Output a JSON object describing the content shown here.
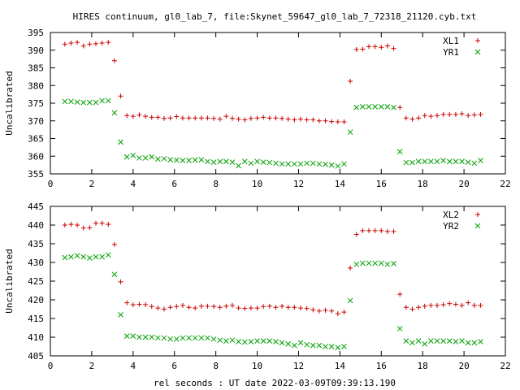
{
  "figure": {
    "title": "HIRES continuum, gl0_lab_7, file:Skynet_59647_gl0_lab_7_72318_21120.cyb.txt",
    "xlabel": "rel seconds : UT date 2022-03-09T09:39:13.190"
  },
  "chart_data": [
    {
      "type": "scatter",
      "ylabel": "Uncalibrated",
      "xlim": [
        0,
        22
      ],
      "ylim": [
        355,
        395
      ],
      "xticks": [
        0,
        2,
        4,
        6,
        8,
        10,
        12,
        14,
        16,
        18,
        20,
        22
      ],
      "yticks": [
        355,
        360,
        365,
        370,
        375,
        380,
        385,
        390,
        395
      ],
      "grid": false,
      "legend": "top-right",
      "series": [
        {
          "name": "XL1",
          "marker": "plus",
          "color": "#cc0000",
          "x": [
            0.7,
            1.0,
            1.3,
            1.6,
            1.9,
            2.2,
            2.5,
            2.8,
            3.1,
            3.4,
            3.7,
            4.0,
            4.3,
            4.6,
            4.9,
            5.2,
            5.5,
            5.8,
            6.1,
            6.4,
            6.7,
            7.0,
            7.3,
            7.6,
            7.9,
            8.2,
            8.5,
            8.8,
            9.1,
            9.4,
            9.7,
            10.0,
            10.3,
            10.6,
            10.9,
            11.2,
            11.5,
            11.8,
            12.1,
            12.4,
            12.7,
            13.0,
            13.3,
            13.6,
            13.9,
            14.2,
            14.5,
            14.8,
            15.1,
            15.4,
            15.7,
            16.0,
            16.3,
            16.6,
            16.9,
            17.2,
            17.5,
            17.8,
            18.1,
            18.4,
            18.7,
            19.0,
            19.3,
            19.6,
            19.9,
            20.2,
            20.5,
            20.8
          ],
          "y": [
            391.7,
            392.0,
            392.2,
            391.2,
            391.7,
            391.8,
            392.0,
            392.2,
            387.0,
            377.0,
            371.5,
            371.3,
            371.7,
            371.3,
            371.0,
            371.0,
            370.7,
            370.8,
            371.2,
            370.8,
            370.8,
            370.8,
            370.8,
            370.8,
            370.7,
            370.5,
            371.3,
            370.7,
            370.5,
            370.3,
            370.7,
            370.8,
            371.0,
            370.8,
            370.8,
            370.7,
            370.5,
            370.3,
            370.5,
            370.3,
            370.3,
            370.0,
            370.0,
            369.8,
            369.7,
            369.7,
            381.2,
            390.2,
            390.3,
            391.0,
            391.0,
            390.8,
            391.2,
            390.5,
            373.8,
            370.8,
            370.5,
            370.8,
            371.5,
            371.3,
            371.5,
            371.8,
            371.8,
            371.8,
            372.0,
            371.5,
            371.7,
            371.8
          ]
        },
        {
          "name": "YR1",
          "marker": "cross",
          "color": "#00a000",
          "x": [
            0.7,
            1.0,
            1.3,
            1.6,
            1.9,
            2.2,
            2.5,
            2.8,
            3.1,
            3.4,
            3.7,
            4.0,
            4.3,
            4.6,
            4.9,
            5.2,
            5.5,
            5.8,
            6.1,
            6.4,
            6.7,
            7.0,
            7.3,
            7.6,
            7.9,
            8.2,
            8.5,
            8.8,
            9.1,
            9.4,
            9.7,
            10.0,
            10.3,
            10.6,
            10.9,
            11.2,
            11.5,
            11.8,
            12.1,
            12.4,
            12.7,
            13.0,
            13.3,
            13.6,
            13.9,
            14.2,
            14.5,
            14.8,
            15.1,
            15.4,
            15.7,
            16.0,
            16.3,
            16.6,
            16.9,
            17.2,
            17.5,
            17.8,
            18.1,
            18.4,
            18.7,
            19.0,
            19.3,
            19.6,
            19.9,
            20.2,
            20.5,
            20.8
          ],
          "y": [
            375.5,
            375.5,
            375.3,
            375.2,
            375.2,
            375.2,
            375.7,
            375.7,
            372.3,
            364.0,
            359.8,
            360.2,
            359.5,
            359.5,
            359.8,
            359.2,
            359.3,
            359.0,
            358.9,
            358.8,
            358.8,
            358.9,
            359.0,
            358.5,
            358.3,
            358.5,
            358.5,
            358.3,
            357.3,
            358.5,
            358.0,
            358.5,
            358.3,
            358.2,
            358.0,
            357.8,
            357.8,
            357.8,
            357.8,
            358.0,
            358.0,
            357.8,
            357.7,
            357.5,
            357.2,
            357.8,
            366.8,
            373.8,
            374.0,
            374.0,
            374.0,
            374.0,
            374.0,
            373.8,
            361.3,
            358.2,
            358.2,
            358.5,
            358.5,
            358.5,
            358.5,
            358.8,
            358.5,
            358.5,
            358.5,
            358.3,
            358.0,
            358.8
          ]
        }
      ]
    },
    {
      "type": "scatter",
      "ylabel": "Uncalibrated",
      "xlabel": "rel seconds : UT date 2022-03-09T09:39:13.190",
      "xlim": [
        0,
        22
      ],
      "ylim": [
        405,
        445
      ],
      "xticks": [
        0,
        2,
        4,
        6,
        8,
        10,
        12,
        14,
        16,
        18,
        20,
        22
      ],
      "yticks": [
        405,
        410,
        415,
        420,
        425,
        430,
        435,
        440,
        445
      ],
      "grid": false,
      "legend": "top-right",
      "series": [
        {
          "name": "XL2",
          "marker": "plus",
          "color": "#cc0000",
          "x": [
            0.7,
            1.0,
            1.3,
            1.6,
            1.9,
            2.2,
            2.5,
            2.8,
            3.1,
            3.4,
            3.7,
            4.0,
            4.3,
            4.6,
            4.9,
            5.2,
            5.5,
            5.8,
            6.1,
            6.4,
            6.7,
            7.0,
            7.3,
            7.6,
            7.9,
            8.2,
            8.5,
            8.8,
            9.1,
            9.4,
            9.7,
            10.0,
            10.3,
            10.6,
            10.9,
            11.2,
            11.5,
            11.8,
            12.1,
            12.4,
            12.7,
            13.0,
            13.3,
            13.6,
            13.9,
            14.2,
            14.5,
            14.8,
            15.1,
            15.4,
            15.7,
            16.0,
            16.3,
            16.6,
            16.9,
            17.2,
            17.5,
            17.8,
            18.1,
            18.4,
            18.7,
            19.0,
            19.3,
            19.6,
            19.9,
            20.2,
            20.5,
            20.8
          ],
          "y": [
            440.0,
            440.2,
            440.0,
            439.2,
            439.3,
            440.5,
            440.5,
            440.2,
            434.8,
            424.8,
            419.2,
            418.7,
            418.8,
            418.7,
            418.2,
            417.8,
            417.5,
            418.0,
            418.2,
            418.5,
            418.0,
            417.8,
            418.3,
            418.3,
            418.2,
            418.0,
            418.3,
            418.5,
            417.8,
            417.7,
            417.8,
            417.8,
            418.2,
            418.3,
            418.0,
            418.3,
            418.0,
            418.0,
            417.8,
            417.7,
            417.3,
            417.0,
            417.2,
            417.0,
            416.3,
            416.7,
            428.5,
            437.5,
            438.5,
            438.5,
            438.5,
            438.5,
            438.3,
            438.3,
            421.5,
            418.0,
            417.5,
            418.0,
            418.3,
            418.5,
            418.5,
            418.7,
            419.0,
            418.8,
            418.5,
            419.2,
            418.5,
            418.5
          ]
        },
        {
          "name": "YR2",
          "marker": "cross",
          "color": "#00a000",
          "x": [
            0.7,
            1.0,
            1.3,
            1.6,
            1.9,
            2.2,
            2.5,
            2.8,
            3.1,
            3.4,
            3.7,
            4.0,
            4.3,
            4.6,
            4.9,
            5.2,
            5.5,
            5.8,
            6.1,
            6.4,
            6.7,
            7.0,
            7.3,
            7.6,
            7.9,
            8.2,
            8.5,
            8.8,
            9.1,
            9.4,
            9.7,
            10.0,
            10.3,
            10.6,
            10.9,
            11.2,
            11.5,
            11.8,
            12.1,
            12.4,
            12.7,
            13.0,
            13.3,
            13.6,
            13.9,
            14.2,
            14.5,
            14.8,
            15.1,
            15.4,
            15.7,
            16.0,
            16.3,
            16.6,
            16.9,
            17.2,
            17.5,
            17.8,
            18.1,
            18.4,
            18.7,
            19.0,
            19.3,
            19.6,
            19.9,
            20.2,
            20.5,
            20.8
          ],
          "y": [
            431.3,
            431.5,
            431.8,
            431.5,
            431.2,
            431.5,
            431.5,
            432.0,
            426.8,
            416.0,
            410.3,
            410.3,
            410.0,
            410.0,
            410.0,
            409.8,
            409.8,
            409.5,
            409.5,
            409.8,
            409.8,
            409.8,
            409.8,
            409.8,
            409.5,
            409.2,
            409.0,
            409.2,
            408.8,
            408.7,
            408.8,
            409.0,
            409.0,
            409.0,
            408.8,
            408.5,
            408.2,
            407.8,
            408.5,
            408.0,
            407.8,
            407.8,
            407.5,
            407.5,
            407.2,
            407.5,
            419.8,
            429.5,
            429.8,
            429.8,
            429.8,
            429.8,
            429.5,
            429.7,
            412.3,
            409.0,
            408.5,
            409.0,
            408.2,
            409.0,
            409.0,
            409.0,
            409.0,
            408.8,
            409.0,
            408.5,
            408.5,
            408.8
          ]
        }
      ]
    }
  ]
}
